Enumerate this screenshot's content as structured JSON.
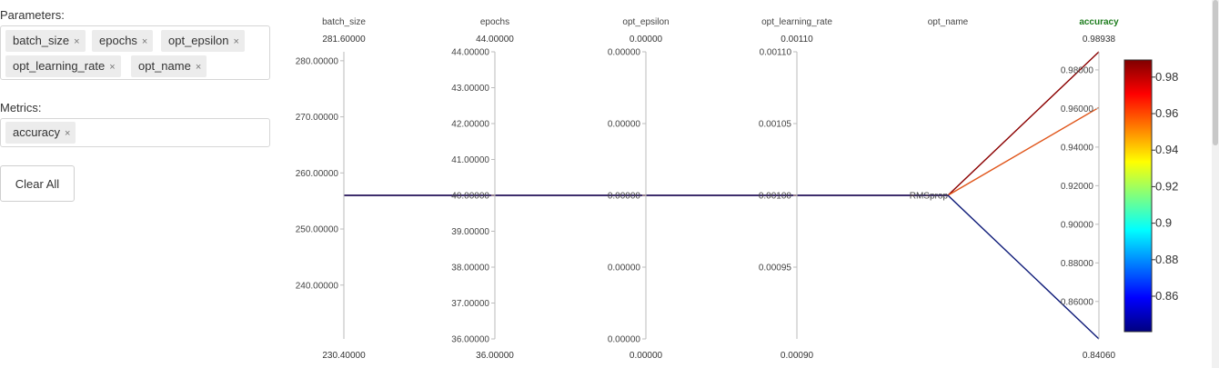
{
  "sidebar": {
    "params_label": "Parameters:",
    "params": [
      {
        "label": "batch_size"
      },
      {
        "label": "epochs"
      },
      {
        "label": "opt_epsilon"
      },
      {
        "label": "opt_learning_rate"
      },
      {
        "label": "opt_name"
      }
    ],
    "metrics_label": "Metrics:",
    "metrics": [
      {
        "label": "accuracy"
      }
    ],
    "remove_glyph": "×",
    "clear_label": "Clear All"
  },
  "chart_data": {
    "type": "parallel_coordinates",
    "axes": [
      {
        "name": "batch_size",
        "range": [
          230.4,
          281.6
        ],
        "top_label": "281.60000",
        "bottom_label": "230.40000",
        "ticks": [
          {
            "value": 240,
            "label": "240.00000"
          },
          {
            "value": 250,
            "label": "250.00000"
          },
          {
            "value": 260,
            "label": "260.00000"
          },
          {
            "value": 270,
            "label": "270.00000"
          },
          {
            "value": 280,
            "label": "280.00000"
          }
        ]
      },
      {
        "name": "epochs",
        "range": [
          36,
          44
        ],
        "top_label": "44.00000",
        "bottom_label": "36.00000",
        "ticks": [
          {
            "value": 36,
            "label": "36.00000"
          },
          {
            "value": 37,
            "label": "37.00000"
          },
          {
            "value": 38,
            "label": "38.00000"
          },
          {
            "value": 39,
            "label": "39.00000"
          },
          {
            "value": 40,
            "label": "40.00000"
          },
          {
            "value": 41,
            "label": "41.00000"
          },
          {
            "value": 42,
            "label": "42.00000"
          },
          {
            "value": 43,
            "label": "43.00000"
          },
          {
            "value": 44,
            "label": "44.00000"
          }
        ]
      },
      {
        "name": "opt_epsilon",
        "range": [
          0,
          1
        ],
        "top_label": "0.00000",
        "bottom_label": "0.00000",
        "ticks": [
          {
            "value": 0,
            "label": "0.00000"
          },
          {
            "value": 0.25,
            "label": "0.00000"
          },
          {
            "value": 0.5,
            "label": "0.00000"
          },
          {
            "value": 0.75,
            "label": "0.00000"
          },
          {
            "value": 1,
            "label": "0.00000"
          }
        ]
      },
      {
        "name": "opt_learning_rate",
        "range": [
          0.0009,
          0.0011
        ],
        "top_label": "0.00110",
        "bottom_label": "0.00090",
        "ticks": [
          {
            "value": 0.00095,
            "label": "0.00095"
          },
          {
            "value": 0.001,
            "label": "0.00100"
          },
          {
            "value": 0.00105,
            "label": "0.00105"
          },
          {
            "value": 0.0011,
            "label": "0.00110"
          }
        ]
      },
      {
        "name": "opt_name",
        "categorical": true,
        "categories": [
          "RMSprop"
        ],
        "top_label": "",
        "bottom_label": "",
        "ticks": []
      },
      {
        "name": "accuracy",
        "metric": true,
        "range": [
          0.8406,
          0.98938
        ],
        "top_label": "0.98938",
        "bottom_label": "0.84060",
        "ticks": [
          {
            "value": 0.86,
            "label": "0.86000"
          },
          {
            "value": 0.88,
            "label": "0.88000"
          },
          {
            "value": 0.9,
            "label": "0.90000"
          },
          {
            "value": 0.92,
            "label": "0.92000"
          },
          {
            "value": 0.94,
            "label": "0.94000"
          },
          {
            "value": 0.96,
            "label": "0.96000"
          },
          {
            "value": 0.98,
            "label": "0.98000"
          }
        ]
      }
    ],
    "runs": [
      {
        "batch_size": 256,
        "epochs": 40,
        "opt_epsilon": 0.5,
        "opt_learning_rate": 0.001,
        "opt_name": "RMSprop",
        "accuracy": 0.98938,
        "color": "#8b0000"
      },
      {
        "batch_size": 256,
        "epochs": 40,
        "opt_epsilon": 0.5,
        "opt_learning_rate": 0.001,
        "opt_name": "RMSprop",
        "accuracy": 0.9605,
        "color": "#e0561b"
      },
      {
        "batch_size": 256,
        "epochs": 40,
        "opt_epsilon": 0.5,
        "opt_learning_rate": 0.001,
        "opt_name": "RMSprop",
        "accuracy": 0.8406,
        "color": "#0d1a78"
      }
    ],
    "colorbar": {
      "range": [
        0.8406,
        0.98938
      ],
      "ticks": [
        {
          "value": 0.86,
          "label": "0.86"
        },
        {
          "value": 0.88,
          "label": "0.88"
        },
        {
          "value": 0.9,
          "label": "0.9"
        },
        {
          "value": 0.92,
          "label": "0.92"
        },
        {
          "value": 0.94,
          "label": "0.94"
        },
        {
          "value": 0.96,
          "label": "0.96"
        },
        {
          "value": 0.98,
          "label": "0.98"
        }
      ],
      "stops": [
        "#00007f",
        "#0000ff",
        "#007fff",
        "#00ffff",
        "#7fff7f",
        "#ffff00",
        "#ff7f00",
        "#ff0000",
        "#7f0000"
      ]
    },
    "metric_title_color": "#1e7d1e"
  }
}
